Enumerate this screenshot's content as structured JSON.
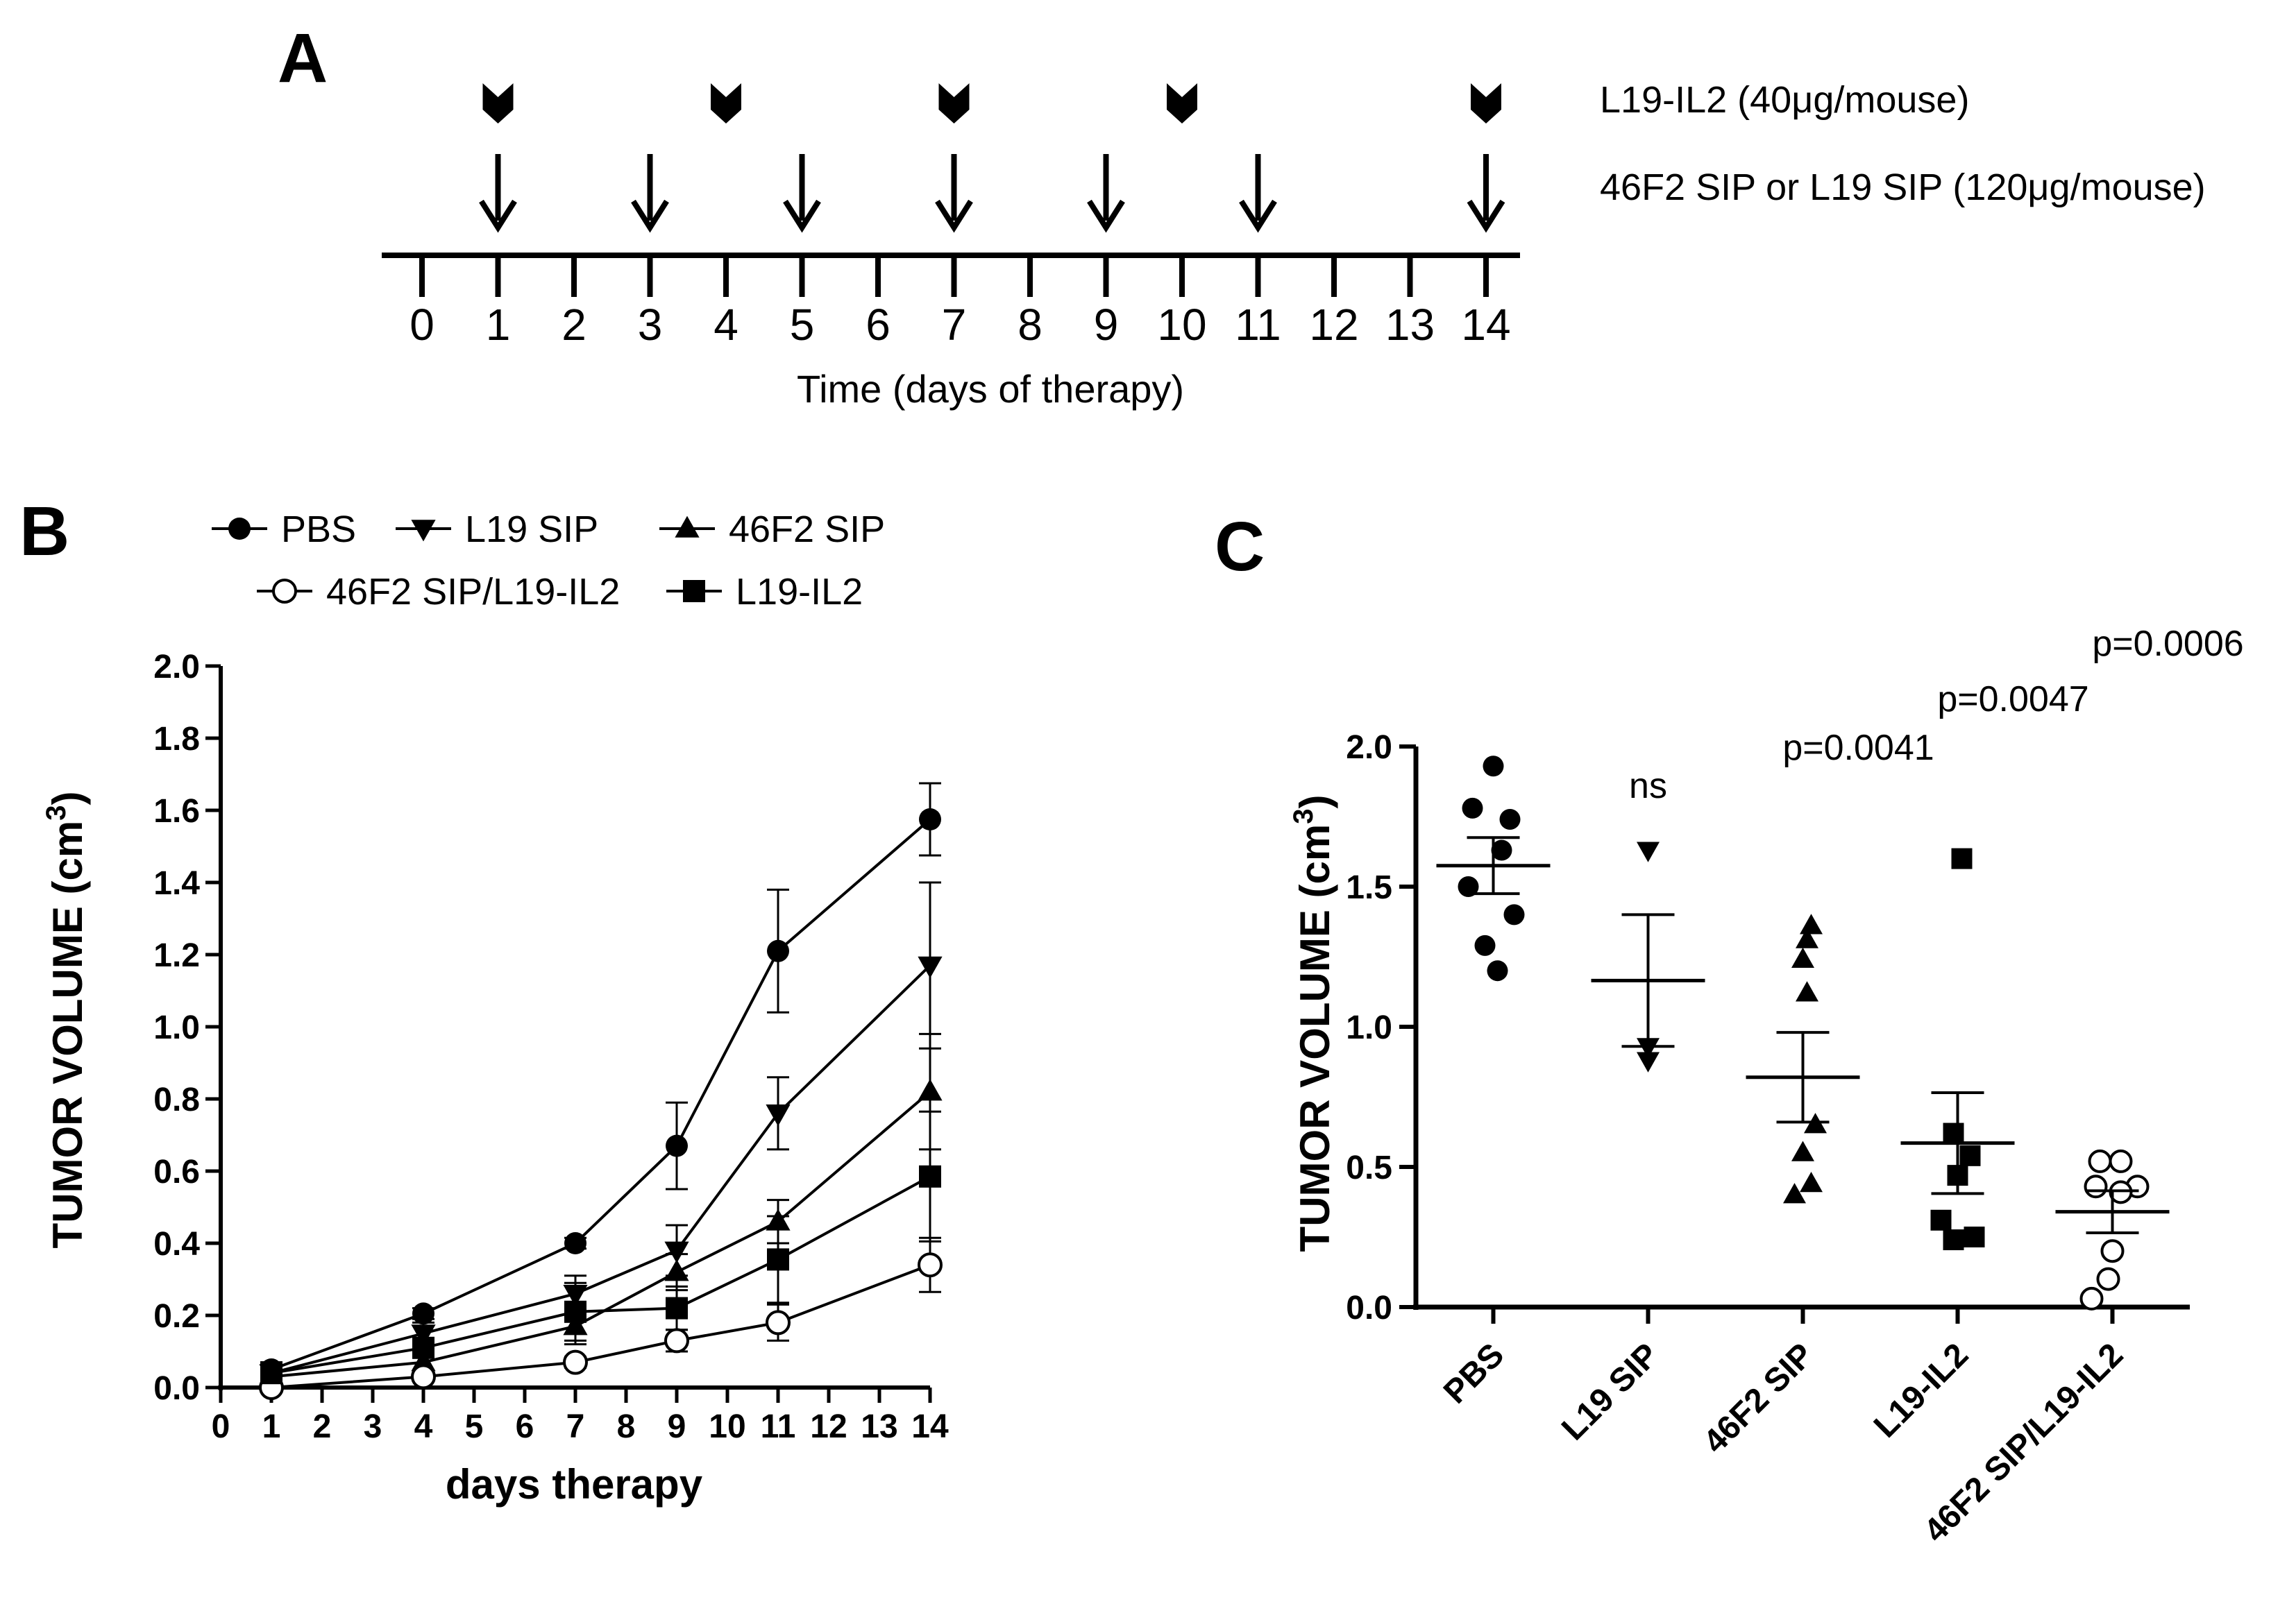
{
  "panel_labels": {
    "a": "A",
    "b": "B",
    "c": "C"
  },
  "timeline": {
    "ticks": [
      "0",
      "1",
      "2",
      "3",
      "4",
      "5",
      "6",
      "7",
      "8",
      "9",
      "10",
      "11",
      "12",
      "13",
      "14"
    ],
    "axis_title": "Time (days of therapy)",
    "il2_days": [
      1,
      4,
      7,
      10,
      14
    ],
    "sip_days": [
      1,
      3,
      5,
      7,
      9,
      11,
      14
    ],
    "il2_label_pre": "L19-IL2 (40",
    "il2_label_unit": "μg",
    "il2_label_post": "/mouse)",
    "sip_label_pre": "46F2 SIP or L19 SIP (120",
    "sip_label_unit": "μg",
    "sip_label_post": "/mouse)"
  },
  "chart_data": [
    {
      "type": "line",
      "panel": "B",
      "xlabel": "days therapy",
      "ylabel_pre": "TUMOR VOLUME (cm",
      "ylabel_sup": "3",
      "ylabel_post": ")",
      "xlim": [
        0,
        14
      ],
      "ylim": [
        0,
        2.0
      ],
      "x_ticks": [
        "0",
        "1",
        "2",
        "3",
        "4",
        "5",
        "6",
        "7",
        "8",
        "9",
        "10",
        "11",
        "12",
        "13",
        "14"
      ],
      "y_ticks": [
        "0.0",
        "0.2",
        "0.4",
        "0.6",
        "0.8",
        "1.0",
        "1.2",
        "1.4",
        "1.6",
        "1.8",
        "2.0"
      ],
      "x": [
        1,
        4,
        7,
        9,
        11,
        14
      ],
      "series": [
        {
          "name": "PBS",
          "marker": "circle",
          "values": [
            0.05,
            0.205,
            0.4,
            0.67,
            1.21,
            1.575
          ],
          "err": [
            0.02,
            0.015,
            0.015,
            0.12,
            0.17,
            0.1
          ]
        },
        {
          "name": "L19 SIP",
          "marker": "triangle-down",
          "values": [
            0.04,
            0.15,
            0.26,
            0.38,
            0.76,
            1.17
          ],
          "err": [
            0.02,
            0.03,
            0.05,
            0.07,
            0.1,
            0.23
          ]
        },
        {
          "name": "46F2 SIP",
          "marker": "triangle-up",
          "values": [
            0.03,
            0.07,
            0.17,
            0.32,
            0.46,
            0.82
          ],
          "err": [
            0.01,
            0.03,
            0.05,
            0.05,
            0.06,
            0.16
          ]
        },
        {
          "name": "46F2 SIP/L19-IL2",
          "marker": "circle-open",
          "values": [
            0.0,
            0.03,
            0.07,
            0.13,
            0.18,
            0.34
          ],
          "err": [
            0.01,
            0.01,
            0.015,
            0.03,
            0.05,
            0.075
          ]
        },
        {
          "name": "L19-IL2",
          "marker": "square",
          "values": [
            0.04,
            0.11,
            0.21,
            0.22,
            0.355,
            0.585
          ],
          "err": [
            0.03,
            0.02,
            0.08,
            0.06,
            0.12,
            0.18
          ]
        }
      ],
      "legend_rows": [
        [
          "PBS",
          "L19 SIP",
          "46F2 SIP"
        ],
        [
          "46F2 SIP/L19-IL2",
          "L19-IL2"
        ]
      ]
    },
    {
      "type": "scatter",
      "panel": "C",
      "ylabel_pre": "TUMOR VOLUME (cm",
      "ylabel_sup": "3",
      "ylabel_post": ")",
      "ylim": [
        0,
        2.0
      ],
      "y_ticks": [
        "0.0",
        "0.5",
        "1.0",
        "1.5",
        "2.0"
      ],
      "categories": [
        "PBS",
        "L19 SIP",
        "46F2 SIP",
        "L19-IL2",
        "46F2 SIP/L19-IL2"
      ],
      "groups": [
        {
          "name": "PBS",
          "marker": "circle",
          "points": [
            [
              0,
              1.93
            ],
            [
              -0.25,
              1.78
            ],
            [
              0.2,
              1.74
            ],
            [
              0.1,
              1.63
            ],
            [
              -0.3,
              1.5
            ],
            [
              0.25,
              1.4
            ],
            [
              -0.1,
              1.29
            ],
            [
              0.05,
              1.2
            ]
          ],
          "mean": 1.575,
          "sem": 0.1,
          "annotation": ""
        },
        {
          "name": "L19 SIP",
          "marker": "triangle-down",
          "points": [
            [
              0,
              1.63
            ],
            [
              0,
              0.93
            ],
            [
              0,
              0.88
            ]
          ],
          "mean": 1.165,
          "sem": 0.235,
          "annotation": "ns"
        },
        {
          "name": "46F2 SIP",
          "marker": "triangle-up",
          "points": [
            [
              0.1,
              1.36
            ],
            [
              0.05,
              1.31
            ],
            [
              0.0,
              1.24
            ],
            [
              0.05,
              1.12
            ],
            [
              0.15,
              0.65
            ],
            [
              0.0,
              0.55
            ],
            [
              0.1,
              0.44
            ],
            [
              -0.1,
              0.4
            ]
          ],
          "mean": 0.82,
          "sem": 0.16,
          "annotation": "p=0.0041"
        },
        {
          "name": "L19-IL2",
          "marker": "square",
          "points": [
            [
              0.05,
              1.6
            ],
            [
              -0.05,
              0.62
            ],
            [
              0.15,
              0.54
            ],
            [
              0.0,
              0.47
            ],
            [
              -0.2,
              0.31
            ],
            [
              -0.05,
              0.24
            ],
            [
              0.2,
              0.25
            ]
          ],
          "mean": 0.585,
          "sem": 0.18,
          "annotation": "p=0.0047"
        },
        {
          "name": "46F2 SIP/L19-IL2",
          "marker": "circle-open",
          "points": [
            [
              -0.15,
              0.52
            ],
            [
              0.1,
              0.52
            ],
            [
              -0.2,
              0.43
            ],
            [
              0.3,
              0.43
            ],
            [
              0.1,
              0.41
            ],
            [
              0.0,
              0.2
            ],
            [
              -0.05,
              0.1
            ],
            [
              -0.25,
              0.03
            ]
          ],
          "mean": 0.34,
          "sem": 0.075,
          "annotation": "p=0.0006"
        }
      ]
    }
  ]
}
